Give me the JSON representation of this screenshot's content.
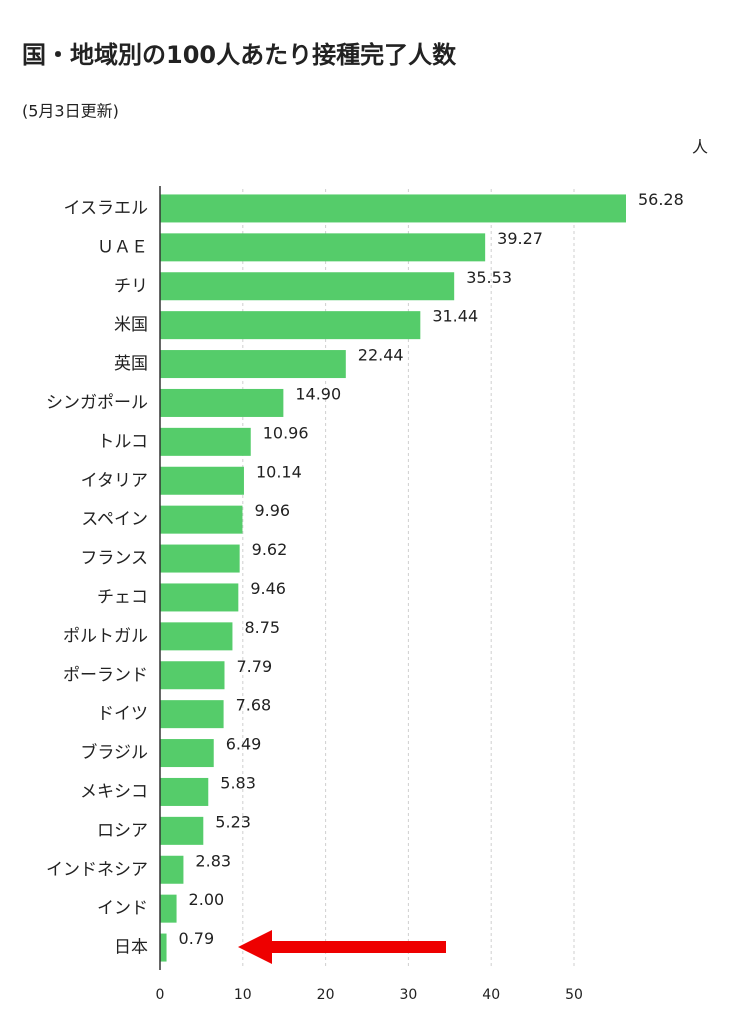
{
  "chart_data": {
    "type": "barh",
    "title": "国・地域別の100人あたり接種完了人数",
    "subtitle": "(5月3日更新)",
    "unit_label": "人",
    "categories": [
      "イスラエル",
      "ＵＡＥ",
      "チリ",
      "米国",
      "英国",
      "シンガポール",
      "トルコ",
      "イタリア",
      "スペイン",
      "フランス",
      "チェコ",
      "ポルトガル",
      "ポーランド",
      "ドイツ",
      "ブラジル",
      "メキシコ",
      "ロシア",
      "インドネシア",
      "インド",
      "日本"
    ],
    "values": [
      56.28,
      39.27,
      35.53,
      31.44,
      22.44,
      14.9,
      10.96,
      10.14,
      9.96,
      9.62,
      9.46,
      8.75,
      7.79,
      7.68,
      6.49,
      5.83,
      5.23,
      2.83,
      2.0,
      0.79
    ],
    "value_labels": [
      "56.28",
      "39.27",
      "35.53",
      "31.44",
      "22.44",
      "14.90",
      "10.96",
      "10.14",
      "9.96",
      "9.62",
      "9.46",
      "8.75",
      "7.79",
      "7.68",
      "6.49",
      "5.83",
      "5.23",
      "2.83",
      "2.00",
      "0.79"
    ],
    "color": "#55cc6a",
    "xlim": [
      0,
      57
    ],
    "xticks": [
      0,
      10,
      20,
      30,
      40,
      50
    ],
    "grid": true
  }
}
